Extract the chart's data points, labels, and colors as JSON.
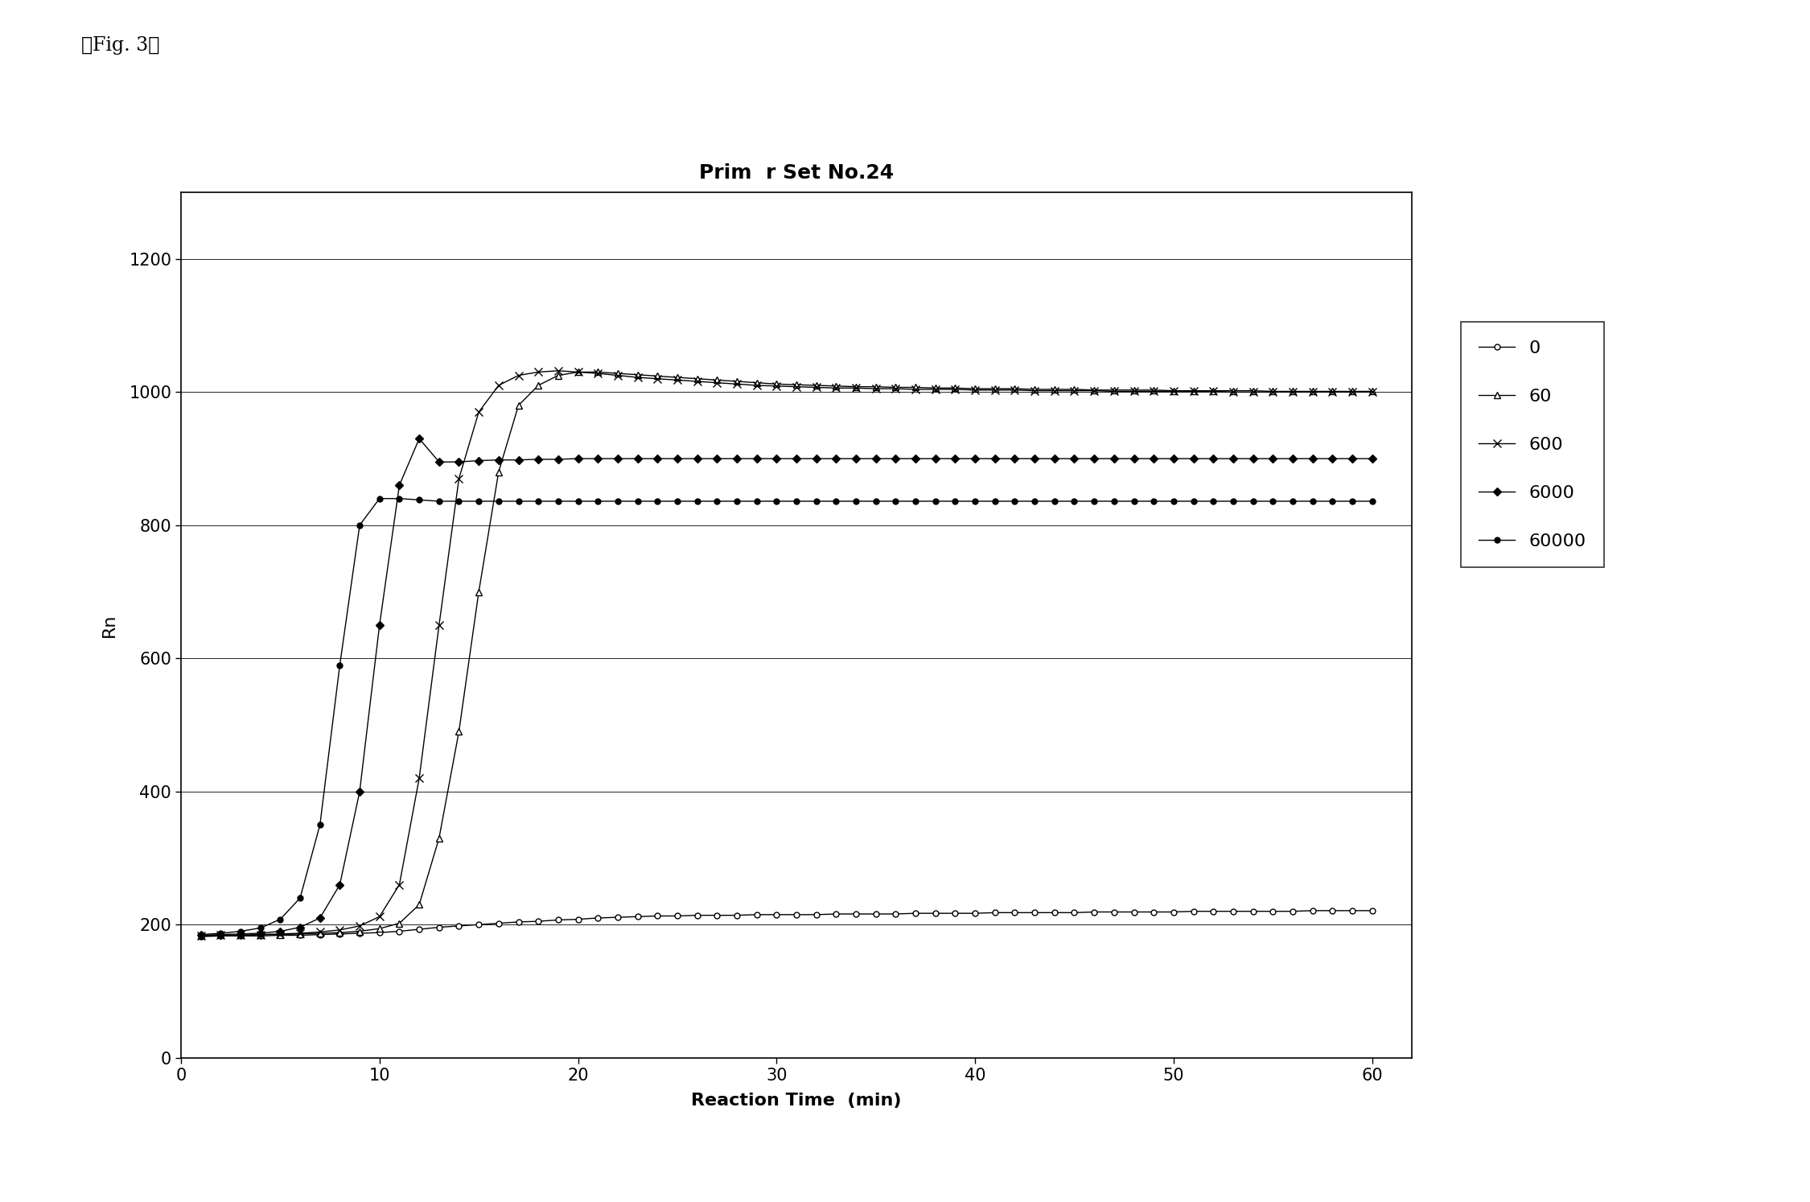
{
  "title": "Prim  r Set No.24",
  "xlabel": "Reaction Time  (min)",
  "ylabel": "Rn",
  "fig_label": "』Fig. 3『",
  "xlim": [
    0,
    62
  ],
  "ylim": [
    0,
    1300
  ],
  "xticks": [
    0,
    10,
    20,
    30,
    40,
    50,
    60
  ],
  "yticks": [
    0,
    200,
    400,
    600,
    800,
    1000,
    1200
  ],
  "series": [
    {
      "label": "0",
      "color": "#000000",
      "marker": "o",
      "markerfacecolor": "white",
      "markersize": 5,
      "linewidth": 1.0,
      "x": [
        1,
        2,
        3,
        4,
        5,
        6,
        7,
        8,
        9,
        10,
        11,
        12,
        13,
        14,
        15,
        16,
        17,
        18,
        19,
        20,
        21,
        22,
        23,
        24,
        25,
        26,
        27,
        28,
        29,
        30,
        31,
        32,
        33,
        34,
        35,
        36,
        37,
        38,
        39,
        40,
        41,
        42,
        43,
        44,
        45,
        46,
        47,
        48,
        49,
        50,
        51,
        52,
        53,
        54,
        55,
        56,
        57,
        58,
        59,
        60
      ],
      "y": [
        182,
        183,
        183,
        183,
        184,
        184,
        185,
        186,
        187,
        188,
        190,
        193,
        196,
        198,
        200,
        202,
        204,
        205,
        207,
        208,
        210,
        211,
        212,
        213,
        213,
        214,
        214,
        214,
        215,
        215,
        215,
        215,
        216,
        216,
        216,
        216,
        217,
        217,
        217,
        217,
        218,
        218,
        218,
        218,
        218,
        219,
        219,
        219,
        219,
        219,
        220,
        220,
        220,
        220,
        220,
        220,
        221,
        221,
        221,
        221
      ]
    },
    {
      "label": "60",
      "color": "#000000",
      "marker": "^",
      "markerfacecolor": "white",
      "markersize": 6,
      "linewidth": 1.0,
      "x": [
        1,
        2,
        3,
        4,
        5,
        6,
        7,
        8,
        9,
        10,
        11,
        12,
        13,
        14,
        15,
        16,
        17,
        18,
        19,
        20,
        21,
        22,
        23,
        24,
        25,
        26,
        27,
        28,
        29,
        30,
        31,
        32,
        33,
        34,
        35,
        36,
        37,
        38,
        39,
        40,
        41,
        42,
        43,
        44,
        45,
        46,
        47,
        48,
        49,
        50,
        51,
        52,
        53,
        54,
        55,
        56,
        57,
        58,
        59,
        60
      ],
      "y": [
        183,
        184,
        184,
        185,
        185,
        186,
        187,
        188,
        190,
        194,
        202,
        230,
        330,
        490,
        700,
        880,
        980,
        1010,
        1025,
        1030,
        1030,
        1028,
        1026,
        1024,
        1022,
        1020,
        1018,
        1016,
        1014,
        1012,
        1011,
        1010,
        1009,
        1008,
        1008,
        1007,
        1007,
        1006,
        1006,
        1005,
        1005,
        1005,
        1004,
        1004,
        1004,
        1003,
        1003,
        1003,
        1003,
        1002,
        1002,
        1002,
        1002,
        1002,
        1001,
        1001,
        1001,
        1001,
        1001,
        1001
      ]
    },
    {
      "label": "600",
      "color": "#000000",
      "marker": "x",
      "markerfacecolor": "black",
      "markersize": 7,
      "linewidth": 1.0,
      "x": [
        1,
        2,
        3,
        4,
        5,
        6,
        7,
        8,
        9,
        10,
        11,
        12,
        13,
        14,
        15,
        16,
        17,
        18,
        19,
        20,
        21,
        22,
        23,
        24,
        25,
        26,
        27,
        28,
        29,
        30,
        31,
        32,
        33,
        34,
        35,
        36,
        37,
        38,
        39,
        40,
        41,
        42,
        43,
        44,
        45,
        46,
        47,
        48,
        49,
        50,
        51,
        52,
        53,
        54,
        55,
        56,
        57,
        58,
        59,
        60
      ],
      "y": [
        183,
        184,
        184,
        185,
        186,
        187,
        189,
        192,
        198,
        212,
        260,
        420,
        650,
        870,
        970,
        1010,
        1025,
        1030,
        1032,
        1030,
        1028,
        1025,
        1022,
        1020,
        1018,
        1016,
        1014,
        1012,
        1010,
        1009,
        1008,
        1007,
        1006,
        1006,
        1005,
        1005,
        1004,
        1004,
        1004,
        1003,
        1003,
        1003,
        1002,
        1002,
        1002,
        1002,
        1001,
        1001,
        1001,
        1001,
        1001,
        1001,
        1000,
        1000,
        1000,
        1000,
        1000,
        1000,
        1000,
        1000
      ]
    },
    {
      "label": "6000",
      "color": "#000000",
      "marker": "D",
      "markerfacecolor": "black",
      "markersize": 5,
      "linewidth": 1.0,
      "x": [
        1,
        2,
        3,
        4,
        5,
        6,
        7,
        8,
        9,
        10,
        11,
        12,
        13,
        14,
        15,
        16,
        17,
        18,
        19,
        20,
        21,
        22,
        23,
        24,
        25,
        26,
        27,
        28,
        29,
        30,
        31,
        32,
        33,
        34,
        35,
        36,
        37,
        38,
        39,
        40,
        41,
        42,
        43,
        44,
        45,
        46,
        47,
        48,
        49,
        50,
        51,
        52,
        53,
        54,
        55,
        56,
        57,
        58,
        59,
        60
      ],
      "y": [
        184,
        185,
        186,
        187,
        190,
        196,
        210,
        260,
        400,
        650,
        860,
        930,
        895,
        895,
        897,
        898,
        898,
        899,
        899,
        900,
        900,
        900,
        900,
        900,
        900,
        900,
        900,
        900,
        900,
        900,
        900,
        900,
        900,
        900,
        900,
        900,
        900,
        900,
        900,
        900,
        900,
        900,
        900,
        900,
        900,
        900,
        900,
        900,
        900,
        900,
        900,
        900,
        900,
        900,
        900,
        900,
        900,
        900,
        900,
        900
      ]
    },
    {
      "label": "60000",
      "color": "#000000",
      "marker": "o",
      "markerfacecolor": "black",
      "markersize": 5,
      "linewidth": 1.0,
      "x": [
        1,
        2,
        3,
        4,
        5,
        6,
        7,
        8,
        9,
        10,
        11,
        12,
        13,
        14,
        15,
        16,
        17,
        18,
        19,
        20,
        21,
        22,
        23,
        24,
        25,
        26,
        27,
        28,
        29,
        30,
        31,
        32,
        33,
        34,
        35,
        36,
        37,
        38,
        39,
        40,
        41,
        42,
        43,
        44,
        45,
        46,
        47,
        48,
        49,
        50,
        51,
        52,
        53,
        54,
        55,
        56,
        57,
        58,
        59,
        60
      ],
      "y": [
        185,
        187,
        190,
        195,
        208,
        240,
        350,
        590,
        800,
        840,
        840,
        838,
        836,
        836,
        836,
        836,
        836,
        836,
        836,
        836,
        836,
        836,
        836,
        836,
        836,
        836,
        836,
        836,
        836,
        836,
        836,
        836,
        836,
        836,
        836,
        836,
        836,
        836,
        836,
        836,
        836,
        836,
        836,
        836,
        836,
        836,
        836,
        836,
        836,
        836,
        836,
        836,
        836,
        836,
        836,
        836,
        836,
        836,
        836,
        836
      ]
    }
  ],
  "background_color": "#ffffff",
  "title_fontsize": 18,
  "axis_label_fontsize": 16,
  "tick_fontsize": 15,
  "legend_fontsize": 16
}
